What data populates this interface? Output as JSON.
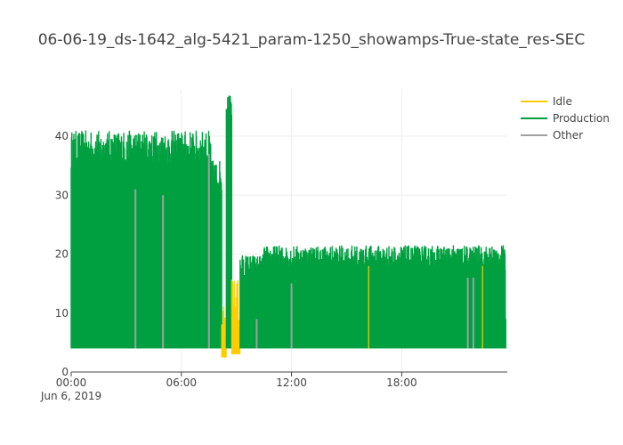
{
  "chart_data": {
    "type": "line",
    "title": "06-06-19_ds-1642_alg-5421_param-1250_showamps-True-state_res-SEC",
    "xlabel": "",
    "ylabel": "",
    "x_range": [
      "2019-06-06 00:00",
      "2019-06-06 23:45"
    ],
    "ylim": [
      0,
      48
    ],
    "x_ticks": [
      {
        "label": "00:00",
        "sublabel": "Jun 6, 2019",
        "hour": 0
      },
      {
        "label": "06:00",
        "sublabel": "",
        "hour": 6
      },
      {
        "label": "12:00",
        "sublabel": "",
        "hour": 12
      },
      {
        "label": "18:00",
        "sublabel": "",
        "hour": 18
      }
    ],
    "y_ticks": [
      0,
      10,
      20,
      30,
      40
    ],
    "grid": true,
    "legend_position": "top-right",
    "series": [
      {
        "name": "Idle",
        "color": "#FFCC00"
      },
      {
        "name": "Production",
        "color": "#00A041"
      },
      {
        "name": "Other",
        "color": "#A0A0A0"
      }
    ],
    "baseline_amps": 4,
    "segments": [
      {
        "start_hour": 0.0,
        "end_hour": 7.6,
        "state": "Production",
        "peak_min": 34,
        "peak_max": 41
      },
      {
        "start_hour": 7.6,
        "end_hour": 8.2,
        "state": "Production",
        "peak_min": 30,
        "peak_max": 36
      },
      {
        "start_hour": 8.2,
        "end_hour": 8.45,
        "state": "Idle",
        "peak_min": 2.5,
        "peak_max": 13
      },
      {
        "start_hour": 8.45,
        "end_hour": 8.75,
        "state": "Production",
        "peak_min": 43,
        "peak_max": 47
      },
      {
        "start_hour": 8.75,
        "end_hour": 9.2,
        "state": "Idle",
        "peak_min": 3,
        "peak_max": 16
      },
      {
        "start_hour": 9.2,
        "end_hour": 10.5,
        "state": "Production",
        "peak_min": 15,
        "peak_max": 20
      },
      {
        "start_hour": 10.5,
        "end_hour": 23.65,
        "state": "Production",
        "peak_min": 17,
        "peak_max": 21.5
      }
    ],
    "other_spikes": [
      {
        "hour": 3.5,
        "value": 31
      },
      {
        "hour": 5.0,
        "value": 30
      },
      {
        "hour": 7.5,
        "value": 37
      },
      {
        "hour": 10.1,
        "value": 9
      },
      {
        "hour": 12.0,
        "value": 15
      },
      {
        "hour": 21.6,
        "value": 16
      },
      {
        "hour": 21.9,
        "value": 16
      }
    ],
    "idle_spikes": [
      {
        "hour": 16.2,
        "value": 18
      },
      {
        "hour": 22.4,
        "value": 18
      }
    ],
    "end_drop": {
      "hour": 23.65,
      "value": 9
    }
  }
}
